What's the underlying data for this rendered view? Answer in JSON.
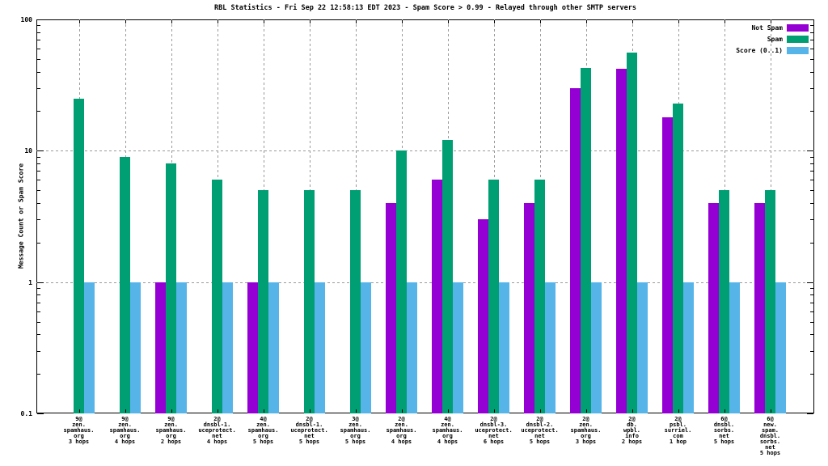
{
  "chart_data": {
    "type": "bar",
    "title": "RBL Statistics - Fri Sep 22 12:58:13 EDT 2023 - Spam Score > 0.99 - Relayed through other SMTP servers",
    "ylabel": "Message Count or Spam Score",
    "yscale": "log",
    "ylim": [
      0.1,
      100
    ],
    "yticks": [
      {
        "value": 100,
        "label": "100"
      },
      {
        "value": 10,
        "label": "10"
      },
      {
        "value": 1,
        "label": "1"
      },
      {
        "value": 0.1,
        "label": "0.1"
      }
    ],
    "grid": true,
    "legend_position": "top-right-inside",
    "categories": [
      [
        "9@",
        "zen.",
        "spamhaus.",
        "org",
        "3 hops"
      ],
      [
        "9@",
        "zen.",
        "spamhaus.",
        "org",
        "4 hops"
      ],
      [
        "9@",
        "zen.",
        "spamhaus.",
        "org",
        "2 hops"
      ],
      [
        "2@",
        "dnsbl-1.",
        "uceprotect.",
        "net",
        "4 hops"
      ],
      [
        "4@",
        "zen.",
        "spamhaus.",
        "org",
        "5 hops"
      ],
      [
        "2@",
        "dnsbl-1.",
        "uceprotect.",
        "net",
        "5 hops"
      ],
      [
        "3@",
        "zen.",
        "spamhaus.",
        "org",
        "5 hops"
      ],
      [
        "2@",
        "zen.",
        "spamhaus.",
        "org",
        "4 hops"
      ],
      [
        "4@",
        "zen.",
        "spamhaus.",
        "org",
        "4 hops"
      ],
      [
        "2@",
        "dnsbl-3.",
        "uceprotect.",
        "net",
        "6 hops"
      ],
      [
        "2@",
        "dnsbl-2.",
        "uceprotect.",
        "net",
        "5 hops"
      ],
      [
        "2@",
        "zen.",
        "spamhaus.",
        "org",
        "3 hops"
      ],
      [
        "2@",
        "db.",
        "wpbl.",
        "info",
        "2 hops"
      ],
      [
        "2@",
        "psbl.",
        "surriel.",
        "com",
        "1 hop"
      ],
      [
        "6@",
        "dnsbl.",
        "sorbs.",
        "net",
        "5 hops"
      ],
      [
        "6@",
        "new.",
        "spam.",
        "dnsbl.",
        "sorbs.",
        "net",
        "5 hops"
      ]
    ],
    "series": [
      {
        "name": "Not Spam",
        "color": "#9400d3",
        "values": [
          null,
          null,
          1,
          null,
          1,
          null,
          null,
          4,
          6,
          3,
          4,
          30,
          42,
          18,
          4,
          4
        ]
      },
      {
        "name": "Spam",
        "color": "#009e73",
        "values": [
          25,
          9,
          8,
          6,
          5,
          5,
          5,
          10,
          12,
          6,
          6,
          43,
          56,
          23,
          5,
          5
        ]
      },
      {
        "name": "Score (0..1)",
        "color": "#56b4e9",
        "values": [
          1,
          1,
          1,
          1,
          1,
          1,
          1,
          1,
          1,
          1,
          1,
          1,
          1,
          1,
          1,
          1
        ]
      }
    ],
    "colors": {
      "grid": "#9a9a9a",
      "axis": "#000000",
      "background": "#ffffff"
    }
  }
}
